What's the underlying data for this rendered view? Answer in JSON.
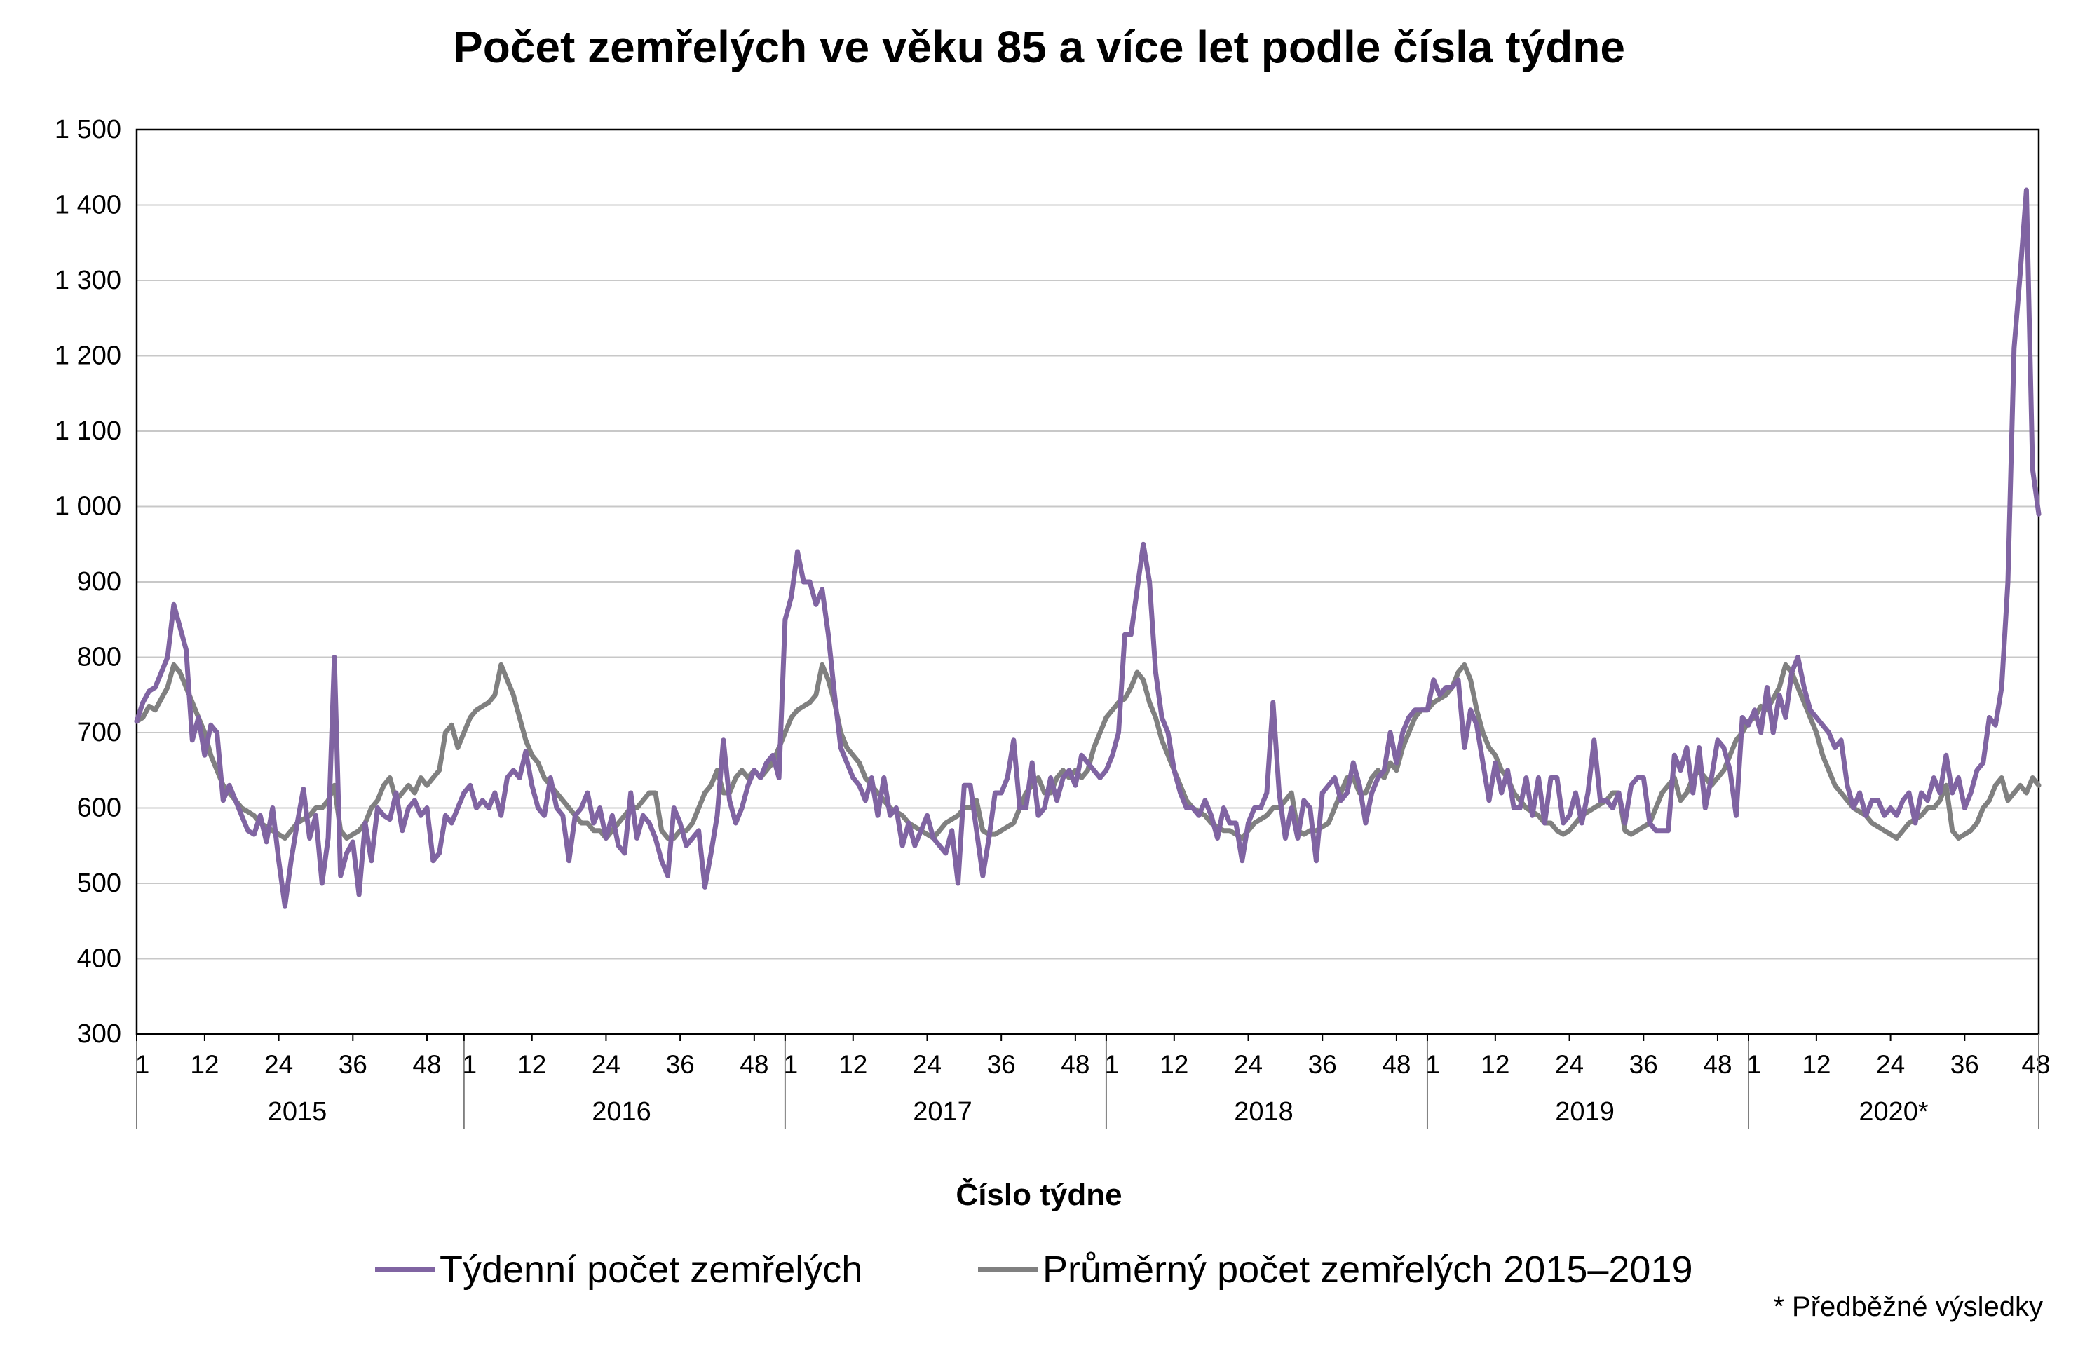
{
  "chart_data": {
    "type": "line",
    "title": "Počet zemřelých ve věku 85 a více let podle čísla týdne",
    "xlabel": "Číslo týdne",
    "ylabel": "",
    "ylim": [
      300,
      1500
    ],
    "y_ticks": [
      "1 500",
      "1 400",
      "1 300",
      "1 200",
      "1 100",
      "1 000",
      "900",
      "800",
      "700",
      "600",
      "500",
      "400",
      "300"
    ],
    "y_tick_values": [
      1500,
      1400,
      1300,
      1200,
      1100,
      1000,
      900,
      800,
      700,
      600,
      500,
      400,
      300
    ],
    "grid": "horizontal",
    "legend_placement": "bottom",
    "years": [
      {
        "label": "2015",
        "weeks": 53,
        "tick_labels": [
          "1",
          "12",
          "24",
          "36",
          "48"
        ]
      },
      {
        "label": "2016",
        "weeks": 52,
        "tick_labels": [
          "1",
          "12",
          "24",
          "36",
          "48"
        ]
      },
      {
        "label": "2017",
        "weeks": 52,
        "tick_labels": [
          "1",
          "12",
          "24",
          "36",
          "48"
        ]
      },
      {
        "label": "2018",
        "weeks": 52,
        "tick_labels": [
          "1",
          "12",
          "24",
          "36",
          "48"
        ]
      },
      {
        "label": "2019",
        "weeks": 52,
        "tick_labels": [
          "1",
          "12",
          "24",
          "36",
          "48"
        ]
      },
      {
        "label": "2020*",
        "weeks": 48,
        "tick_labels": [
          "1",
          "12",
          "24",
          "36",
          "48"
        ]
      }
    ],
    "series": [
      {
        "name": "Týdenní počet zemřelých",
        "color": "#8064a2",
        "values": [
          [
            715,
            740,
            755,
            760,
            780,
            800,
            870,
            840,
            810,
            690,
            720,
            670,
            710,
            700,
            610,
            630,
            610,
            590,
            570,
            565,
            590,
            555,
            600,
            530,
            470,
            530,
            580,
            625,
            560,
            590,
            500,
            560,
            800,
            510,
            540,
            555,
            485,
            580,
            530,
            600,
            590,
            585,
            620,
            570,
            600,
            610,
            590,
            600,
            530,
            540,
            590,
            580,
            600
          ],
          [
            620,
            630,
            600,
            610,
            600,
            620,
            590,
            640,
            650,
            640,
            675,
            630,
            600,
            590,
            640,
            600,
            590,
            530,
            590,
            600,
            620,
            580,
            600,
            560,
            590,
            550,
            540,
            620,
            560,
            590,
            580,
            560,
            530,
            510,
            600,
            580,
            550,
            560,
            570,
            495,
            540,
            590,
            690,
            610,
            580,
            600,
            630,
            650,
            640,
            660,
            670,
            640
          ],
          [
            850,
            880,
            940,
            900,
            900,
            870,
            890,
            830,
            750,
            680,
            660,
            640,
            630,
            610,
            640,
            590,
            640,
            590,
            600,
            550,
            580,
            550,
            570,
            590,
            560,
            550,
            540,
            570,
            500,
            630,
            630,
            570,
            510,
            560,
            620,
            620,
            640,
            690,
            600,
            600,
            660,
            590,
            600,
            640,
            610,
            640,
            650,
            630,
            670,
            660,
            650,
            640
          ],
          [
            650,
            670,
            700,
            830,
            830,
            890,
            950,
            900,
            780,
            720,
            700,
            650,
            620,
            600,
            600,
            590,
            610,
            590,
            560,
            600,
            580,
            580,
            530,
            580,
            600,
            600,
            620,
            740,
            620,
            560,
            600,
            560,
            610,
            600,
            530,
            620,
            630,
            640,
            610,
            620,
            660,
            630,
            580,
            620,
            640,
            650,
            700,
            660,
            700,
            720,
            730,
            730
          ],
          [
            730,
            770,
            750,
            760,
            760,
            770,
            680,
            730,
            710,
            660,
            610,
            660,
            620,
            650,
            600,
            600,
            640,
            590,
            640,
            580,
            640,
            640,
            580,
            590,
            620,
            580,
            620,
            690,
            610,
            610,
            600,
            620,
            580,
            630,
            640,
            640,
            580,
            570,
            570,
            570,
            670,
            650,
            680,
            620,
            680,
            600,
            640,
            690,
            680,
            650,
            590,
            720
          ],
          [
            710,
            730,
            700,
            760,
            700,
            750,
            720,
            780,
            800,
            760,
            730,
            720,
            710,
            700,
            680,
            690,
            630,
            600,
            620,
            590,
            610,
            610,
            590,
            600,
            590,
            610,
            620,
            580,
            620,
            610,
            640,
            620,
            670,
            620,
            640,
            600,
            620,
            650,
            660,
            720,
            710,
            760,
            900,
            1210,
            1310,
            1420,
            1050,
            990
          ]
        ]
      },
      {
        "name": "Průměrný počet zemřelých 2015–2019",
        "color": "#808080",
        "values": [
          [
            715,
            720,
            735,
            730,
            745,
            760,
            790,
            780,
            760,
            740,
            720,
            700,
            670,
            650,
            630,
            620,
            610,
            600,
            595,
            590,
            580,
            575,
            570,
            565,
            560,
            570,
            580,
            585,
            590,
            600,
            600,
            610,
            630,
            570,
            560,
            565,
            570,
            580,
            600,
            610,
            630,
            640,
            610,
            620,
            630,
            620,
            640,
            630,
            640,
            650,
            700,
            710,
            680
          ],
          [
            700,
            720,
            730,
            735,
            740,
            750,
            790,
            770,
            750,
            720,
            690,
            670,
            660,
            640,
            630,
            620,
            610,
            600,
            590,
            580,
            580,
            570,
            570,
            560,
            570,
            580,
            590,
            600,
            600,
            610,
            620,
            620,
            570,
            560,
            560,
            570,
            570,
            580,
            600,
            620,
            630,
            650,
            620,
            620,
            640,
            650,
            640,
            650,
            640,
            650,
            660,
            680
          ],
          [
            700,
            720,
            730,
            735,
            740,
            750,
            790,
            770,
            740,
            700,
            680,
            670,
            660,
            640,
            630,
            620,
            610,
            600,
            595,
            590,
            580,
            575,
            570,
            565,
            560,
            570,
            580,
            585,
            590,
            600,
            600,
            610,
            570,
            565,
            565,
            570,
            575,
            580,
            600,
            620,
            630,
            640,
            620,
            620,
            640,
            650,
            640,
            650,
            640,
            650,
            680,
            700
          ],
          [
            720,
            730,
            740,
            745,
            760,
            780,
            770,
            740,
            720,
            690,
            670,
            650,
            630,
            610,
            600,
            595,
            590,
            580,
            575,
            570,
            570,
            565,
            560,
            570,
            580,
            585,
            590,
            600,
            600,
            610,
            620,
            570,
            565,
            570,
            570,
            575,
            580,
            600,
            620,
            640,
            640,
            620,
            620,
            640,
            650,
            640,
            660,
            650,
            680,
            700,
            720,
            730
          ],
          [
            730,
            740,
            745,
            750,
            760,
            780,
            790,
            770,
            730,
            700,
            680,
            670,
            650,
            640,
            620,
            610,
            600,
            595,
            590,
            580,
            580,
            570,
            565,
            570,
            580,
            590,
            595,
            600,
            605,
            610,
            620,
            620,
            570,
            565,
            570,
            575,
            580,
            600,
            620,
            630,
            640,
            610,
            620,
            640,
            650,
            640,
            630,
            640,
            650,
            670,
            690,
            700
          ],
          [
            715,
            720,
            735,
            730,
            745,
            760,
            790,
            780,
            760,
            740,
            720,
            700,
            670,
            650,
            630,
            620,
            610,
            600,
            595,
            590,
            580,
            575,
            570,
            565,
            560,
            570,
            580,
            585,
            590,
            600,
            600,
            610,
            630,
            570,
            560,
            565,
            570,
            580,
            600,
            610,
            630,
            640,
            610,
            620,
            630,
            620,
            640,
            630
          ]
        ]
      }
    ],
    "footnote": "* Předběžné výsledky"
  }
}
